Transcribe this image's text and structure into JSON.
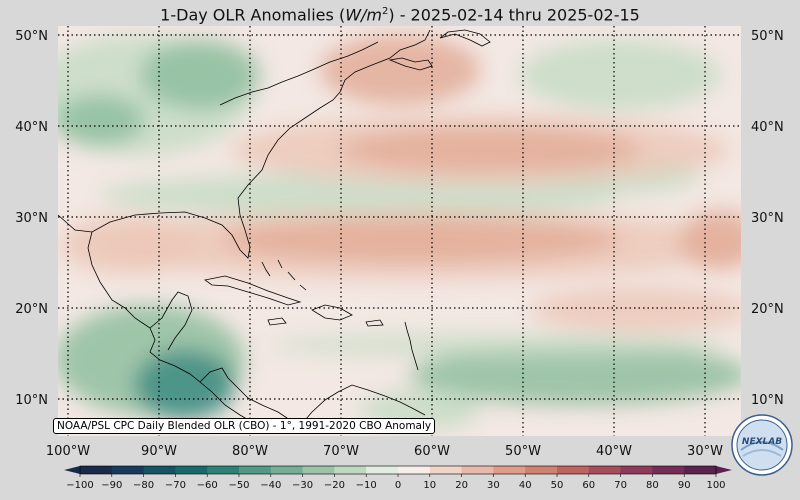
{
  "title": {
    "prefix": "1-Day OLR Anomalies (",
    "units_var": "W/m",
    "units_exp": "2",
    "suffix": ") - 2025-02-14 thru 2025-02-15"
  },
  "latitude_labels": [
    "50°N",
    "40°N",
    "30°N",
    "20°N",
    "10°N"
  ],
  "longitude_labels": [
    "100°W",
    "90°W",
    "80°W",
    "70°W",
    "60°W",
    "50°W",
    "40°W",
    "30°W"
  ],
  "source_note": "NOAA/PSL CPC Daily Blended OLR (CBO) - 1°, 1991-2020 CBO Anomaly",
  "logo_text": "NEXLAB",
  "colorbar": {
    "ticks": [
      "−100",
      "−90",
      "−80",
      "−70",
      "−60",
      "−50",
      "−40",
      "−30",
      "−20",
      "−10",
      "0",
      "10",
      "20",
      "30",
      "40",
      "50",
      "60",
      "70",
      "80",
      "90",
      "100"
    ],
    "colors": [
      "#1b2a4a",
      "#173b5e",
      "#155467",
      "#176b6c",
      "#2d8277",
      "#4f9985",
      "#75ae96",
      "#9bc3a8",
      "#bfd8c0",
      "#e2ece0",
      "#f7eee9",
      "#f1d4c8",
      "#e8b8a8",
      "#de9c89",
      "#d2806f",
      "#c0635f",
      "#a84b5a",
      "#8f3a5a",
      "#752d57",
      "#5b224f"
    ]
  },
  "map": {
    "colors": {
      "ocean_neutral": "#f3e8e3",
      "positive_light": "#ecc8b9",
      "positive_mid": "#e3ad99",
      "negative_light": "#c7dcc6",
      "negative_mid": "#8fbe9f",
      "negative_strong": "#3f8c84",
      "coastline": "#000000",
      "background": "#d8d8d8"
    }
  }
}
